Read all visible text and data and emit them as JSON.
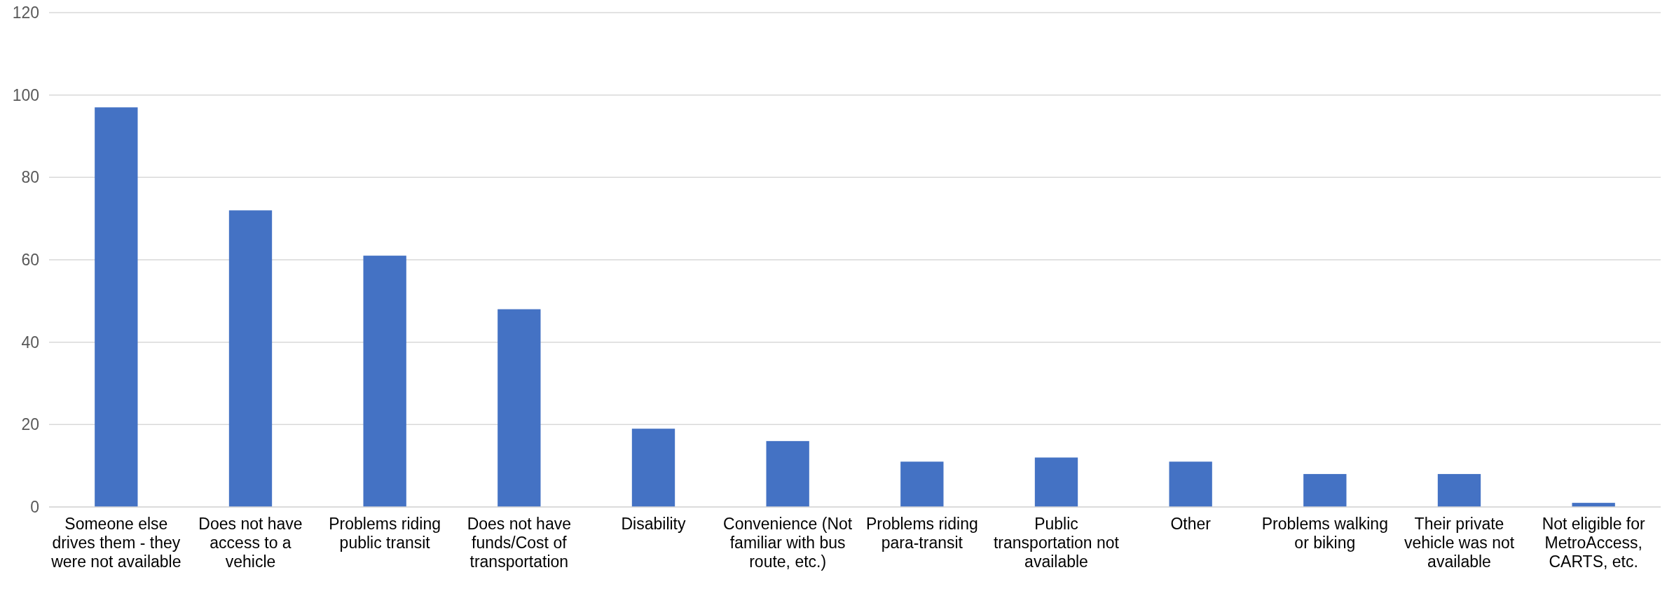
{
  "chart_data": {
    "type": "bar",
    "categories": [
      "Someone else drives them - they were not available",
      "Does not have access to a vehicle",
      "Problems riding public transit",
      "Does not have funds/Cost of transportation",
      "Disability",
      "Convenience (Not familiar with bus route, etc.)",
      "Problems riding para-transit",
      "Public transportation not available",
      "Other",
      "Problems walking or biking",
      "Their private vehicle was not available",
      "Not eligible for MetroAccess, CARTS, etc."
    ],
    "values": [
      97,
      72,
      61,
      48,
      19,
      16,
      11,
      12,
      11,
      8,
      8,
      1
    ],
    "color": "#4472c4",
    "ylim": [
      0,
      120
    ],
    "yticks": [
      0,
      20,
      40,
      60,
      80,
      100,
      120
    ],
    "grid": "y"
  }
}
